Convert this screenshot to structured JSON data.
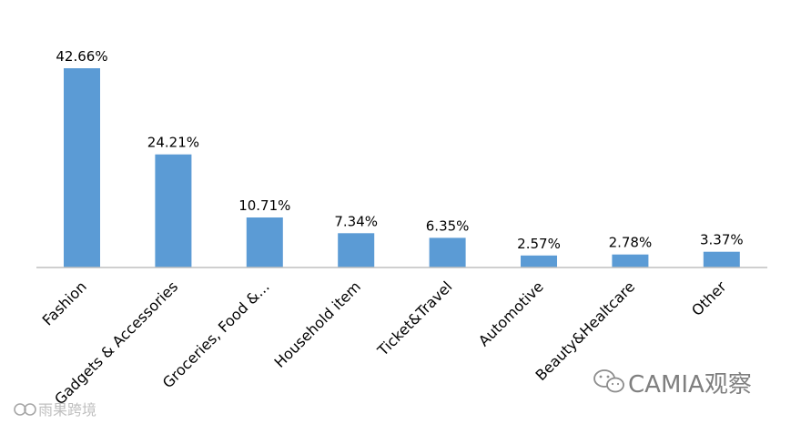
{
  "chart_data": {
    "type": "bar",
    "categories": [
      "Fashion",
      "Gadgets & Accessories",
      "Groceries, Food &...",
      "Household item",
      "Ticket&Travel",
      "Automotive",
      "Beauty&Healtcare",
      "Other"
    ],
    "values": [
      42.66,
      24.21,
      10.71,
      7.34,
      6.35,
      2.57,
      2.78,
      3.37
    ],
    "value_labels": [
      "42.66%",
      "24.21%",
      "10.71%",
      "7.34%",
      "6.35%",
      "2.57%",
      "2.78%",
      "3.37%"
    ],
    "ylim": [
      0,
      45
    ],
    "grid": false,
    "legend": "none",
    "bar_color": "#5b9bd5",
    "title": "",
    "xlabel": "",
    "ylabel": ""
  },
  "watermarks": {
    "right": "CAMIA观察",
    "left": "雨果跨境"
  }
}
